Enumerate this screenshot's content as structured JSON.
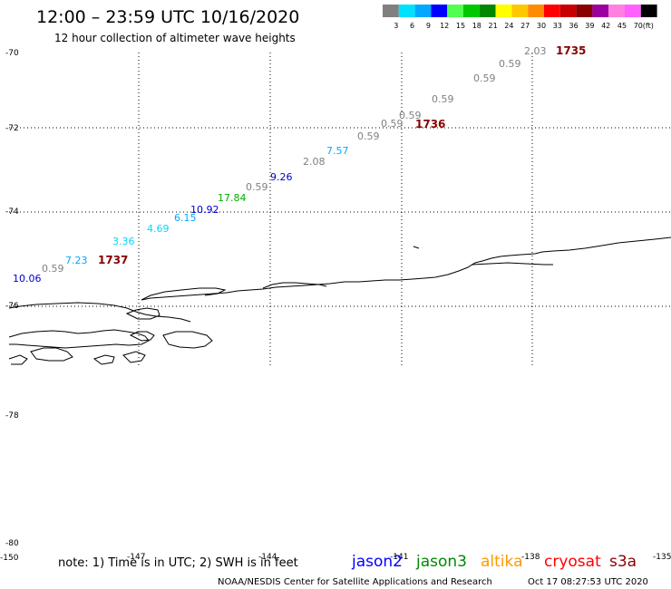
{
  "header": {
    "title": "12:00 – 23:59 UTC 10/16/2020",
    "subtitle": "12 hour collection of altimeter wave heights"
  },
  "colorbar": {
    "colors": [
      "#808080",
      "#00e0ff",
      "#00a8ff",
      "#0000ff",
      "#50ff50",
      "#00c800",
      "#008800",
      "#ffff00",
      "#ffc800",
      "#ff8c00",
      "#ff0000",
      "#c80000",
      "#880000",
      "#9c00a0",
      "#ff80e0",
      "#ff60ff",
      "#000000"
    ],
    "labels": [
      "3",
      "6",
      "9",
      "12",
      "15",
      "18",
      "21",
      "24",
      "27",
      "30",
      "33",
      "36",
      "39",
      "42",
      "45",
      "70",
      "(ft)"
    ]
  },
  "axes": {
    "lat_labels": [
      "-70",
      "-72",
      "-74",
      "-76",
      "-78",
      "-80"
    ],
    "lon_labels": [
      "-150",
      "-147",
      "-144",
      "-141",
      "-138",
      "-135"
    ]
  },
  "observations": [
    {
      "text": "2.03",
      "color": "#808080"
    },
    {
      "text": "1735",
      "color": "#880000"
    },
    {
      "text": "0.59",
      "color": "#808080"
    },
    {
      "text": "0.59",
      "color": "#808080"
    },
    {
      "text": "0.59",
      "color": "#808080"
    },
    {
      "text": "0.59",
      "color": "#808080"
    },
    {
      "text": "0.59",
      "color": "#808080"
    },
    {
      "text": "1736",
      "color": "#880000"
    },
    {
      "text": "0.59",
      "color": "#808080"
    },
    {
      "text": "7.57",
      "color": "#00a8ff"
    },
    {
      "text": "2.08",
      "color": "#808080"
    },
    {
      "text": "9.26",
      "color": "#0000c8"
    },
    {
      "text": "0.59",
      "color": "#808080"
    },
    {
      "text": "17.84",
      "color": "#00b000"
    },
    {
      "text": "10.92",
      "color": "#0000c8"
    },
    {
      "text": "6.15",
      "color": "#00a8ff"
    },
    {
      "text": "4.69",
      "color": "#00d8ff"
    },
    {
      "text": "3.36",
      "color": "#00d8ff"
    },
    {
      "text": "7.23",
      "color": "#00a8ff"
    },
    {
      "text": "1737",
      "color": "#880000"
    },
    {
      "text": "0.59",
      "color": "#808080"
    },
    {
      "text": "10.06",
      "color": "#0000c8"
    }
  ],
  "footer": {
    "note": "note:  1) Time is in UTC;  2) SWH is in feet",
    "credit": "NOAA/NESDIS Center for Satellite Applications and Research",
    "timestamp": "Oct 17 08:27:53 UTC 2020",
    "satellites": [
      {
        "name": "jason2",
        "color": "#0000ff"
      },
      {
        "name": "jason3",
        "color": "#008800"
      },
      {
        "name": "altika",
        "color": "#ff9900"
      },
      {
        "name": "cryosat",
        "color": "#ff0000"
      },
      {
        "name": "s3a",
        "color": "#880000"
      }
    ]
  }
}
